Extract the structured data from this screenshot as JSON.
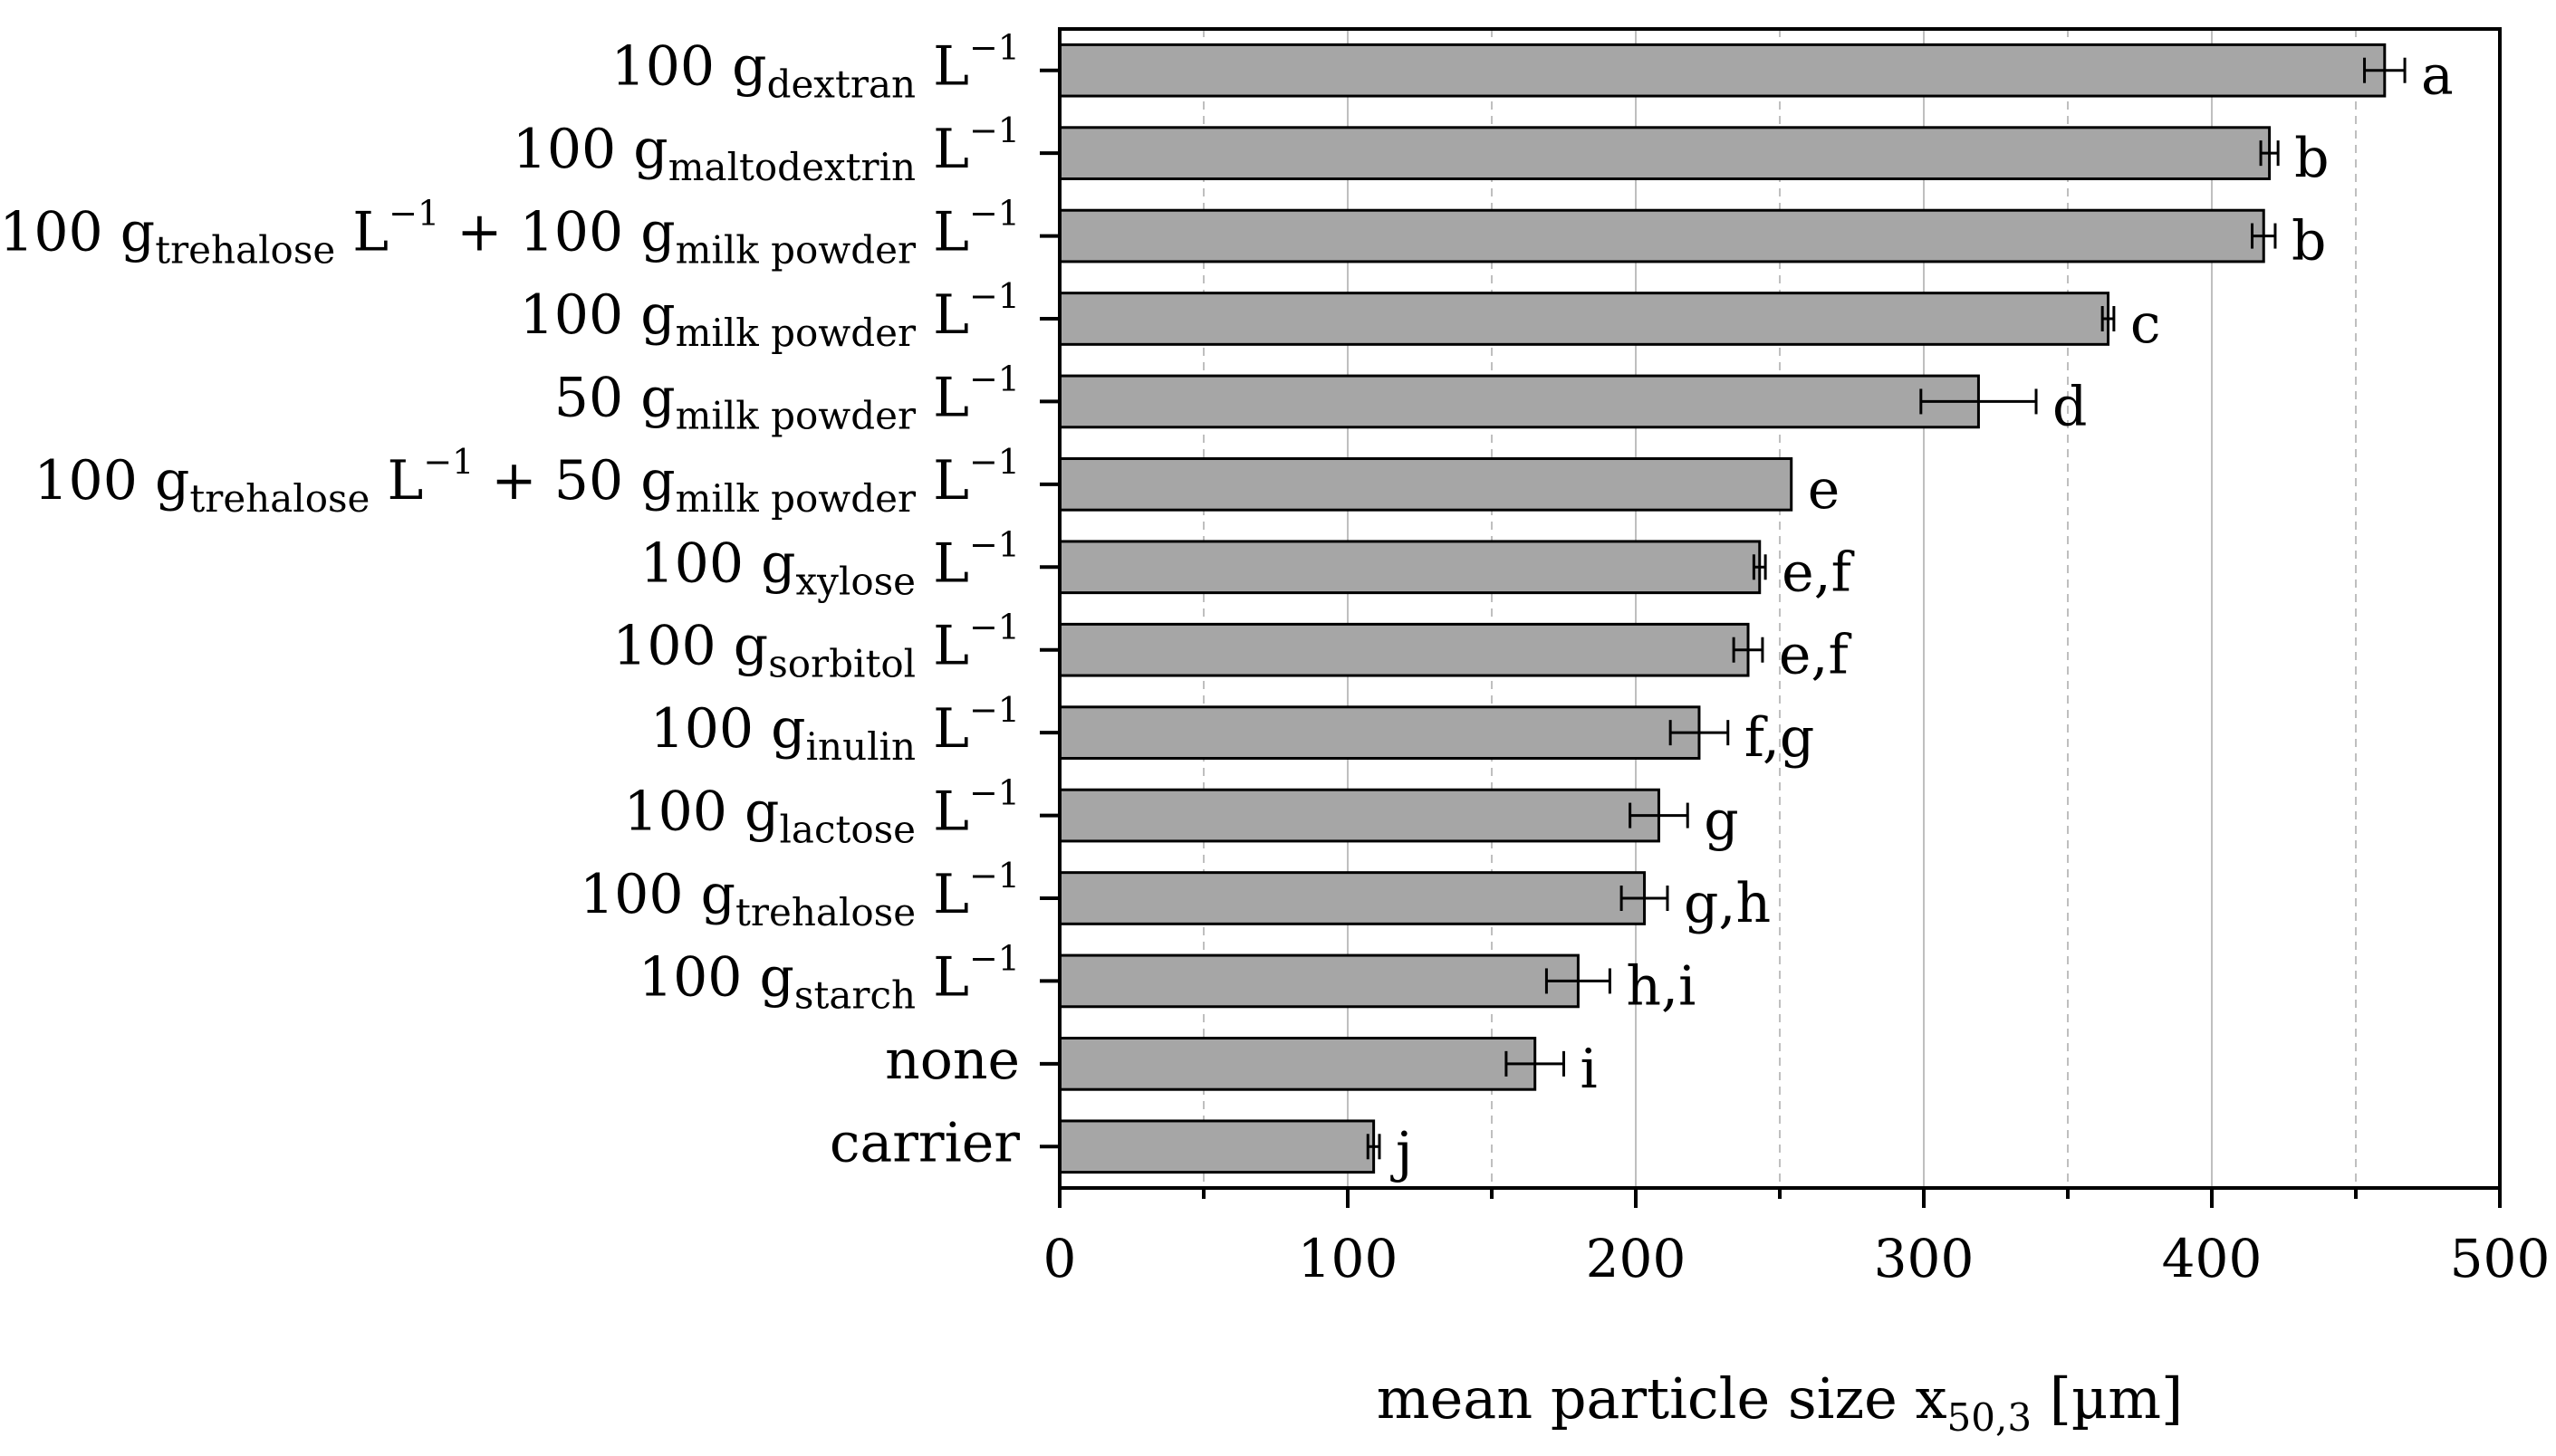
{
  "chart_data": {
    "type": "bar",
    "orientation": "horizontal",
    "title": "",
    "xlabel": {
      "main": "mean particle size x",
      "sub": "50,3",
      "unit": " [µm]"
    },
    "ylabel": "",
    "xlim": [
      0,
      500
    ],
    "xticks": [
      0,
      100,
      200,
      300,
      400,
      500
    ],
    "minor_gridlines": [
      50,
      150,
      250,
      350,
      450
    ],
    "bar_color": "#a6a6a6",
    "grid_color": "#bfbfbf",
    "categories": [
      {
        "parts": [
          {
            "t": "100 g",
            "k": "n"
          },
          {
            "t": "dextran",
            "k": "sub"
          },
          {
            "t": " L",
            "k": "n"
          },
          {
            "t": "−1",
            "k": "sup"
          }
        ],
        "value": 460,
        "error": 7,
        "significance": "a"
      },
      {
        "parts": [
          {
            "t": "100 g",
            "k": "n"
          },
          {
            "t": "maltodextrin",
            "k": "sub"
          },
          {
            "t": " L",
            "k": "n"
          },
          {
            "t": "−1",
            "k": "sup"
          }
        ],
        "value": 420,
        "error": 3,
        "significance": "b"
      },
      {
        "parts": [
          {
            "t": "100 g",
            "k": "n"
          },
          {
            "t": "trehalose",
            "k": "sub"
          },
          {
            "t": " L",
            "k": "n"
          },
          {
            "t": "−1",
            "k": "sup"
          },
          {
            "t": " + 100 g",
            "k": "n"
          },
          {
            "t": "milk powder",
            "k": "sub"
          },
          {
            "t": " L",
            "k": "n"
          },
          {
            "t": "−1",
            "k": "sup"
          }
        ],
        "value": 418,
        "error": 4,
        "significance": "b"
      },
      {
        "parts": [
          {
            "t": "100 g",
            "k": "n"
          },
          {
            "t": "milk powder",
            "k": "sub"
          },
          {
            "t": " L",
            "k": "n"
          },
          {
            "t": "−1",
            "k": "sup"
          }
        ],
        "value": 364,
        "error": 2,
        "significance": "c"
      },
      {
        "parts": [
          {
            "t": "50 g",
            "k": "n"
          },
          {
            "t": "milk powder",
            "k": "sub"
          },
          {
            "t": " L",
            "k": "n"
          },
          {
            "t": "−1",
            "k": "sup"
          }
        ],
        "value": 319,
        "error": 20,
        "significance": "d"
      },
      {
        "parts": [
          {
            "t": "100 g",
            "k": "n"
          },
          {
            "t": "trehalose",
            "k": "sub"
          },
          {
            "t": " L",
            "k": "n"
          },
          {
            "t": "−1",
            "k": "sup"
          },
          {
            "t": " + 50 g",
            "k": "n"
          },
          {
            "t": "milk powder",
            "k": "sub"
          },
          {
            "t": " L",
            "k": "n"
          },
          {
            "t": "−1",
            "k": "sup"
          }
        ],
        "value": 254,
        "error": 0,
        "significance": "e"
      },
      {
        "parts": [
          {
            "t": "100 g",
            "k": "n"
          },
          {
            "t": "xylose",
            "k": "sub"
          },
          {
            "t": " L",
            "k": "n"
          },
          {
            "t": "−1",
            "k": "sup"
          }
        ],
        "value": 243,
        "error": 2,
        "significance": "e,f"
      },
      {
        "parts": [
          {
            "t": "100 g",
            "k": "n"
          },
          {
            "t": "sorbitol",
            "k": "sub"
          },
          {
            "t": " L",
            "k": "n"
          },
          {
            "t": "−1",
            "k": "sup"
          }
        ],
        "value": 239,
        "error": 5,
        "significance": "e,f"
      },
      {
        "parts": [
          {
            "t": "100 g",
            "k": "n"
          },
          {
            "t": "inulin",
            "k": "sub"
          },
          {
            "t": " L",
            "k": "n"
          },
          {
            "t": "−1",
            "k": "sup"
          }
        ],
        "value": 222,
        "error": 10,
        "significance": "f,g"
      },
      {
        "parts": [
          {
            "t": "100 g",
            "k": "n"
          },
          {
            "t": "lactose",
            "k": "sub"
          },
          {
            "t": " L",
            "k": "n"
          },
          {
            "t": "−1",
            "k": "sup"
          }
        ],
        "value": 208,
        "error": 10,
        "significance": "g"
      },
      {
        "parts": [
          {
            "t": "100 g",
            "k": "n"
          },
          {
            "t": "trehalose",
            "k": "sub"
          },
          {
            "t": " L",
            "k": "n"
          },
          {
            "t": "−1",
            "k": "sup"
          }
        ],
        "value": 203,
        "error": 8,
        "significance": "g,h"
      },
      {
        "parts": [
          {
            "t": "100 g",
            "k": "n"
          },
          {
            "t": "starch",
            "k": "sub"
          },
          {
            "t": " L",
            "k": "n"
          },
          {
            "t": "−1",
            "k": "sup"
          }
        ],
        "value": 180,
        "error": 11,
        "significance": "h,i"
      },
      {
        "parts": [
          {
            "t": "none",
            "k": "n"
          }
        ],
        "value": 165,
        "error": 10,
        "significance": "i"
      },
      {
        "parts": [
          {
            "t": "carrier",
            "k": "n"
          }
        ],
        "value": 109,
        "error": 2,
        "significance": "j"
      }
    ]
  }
}
